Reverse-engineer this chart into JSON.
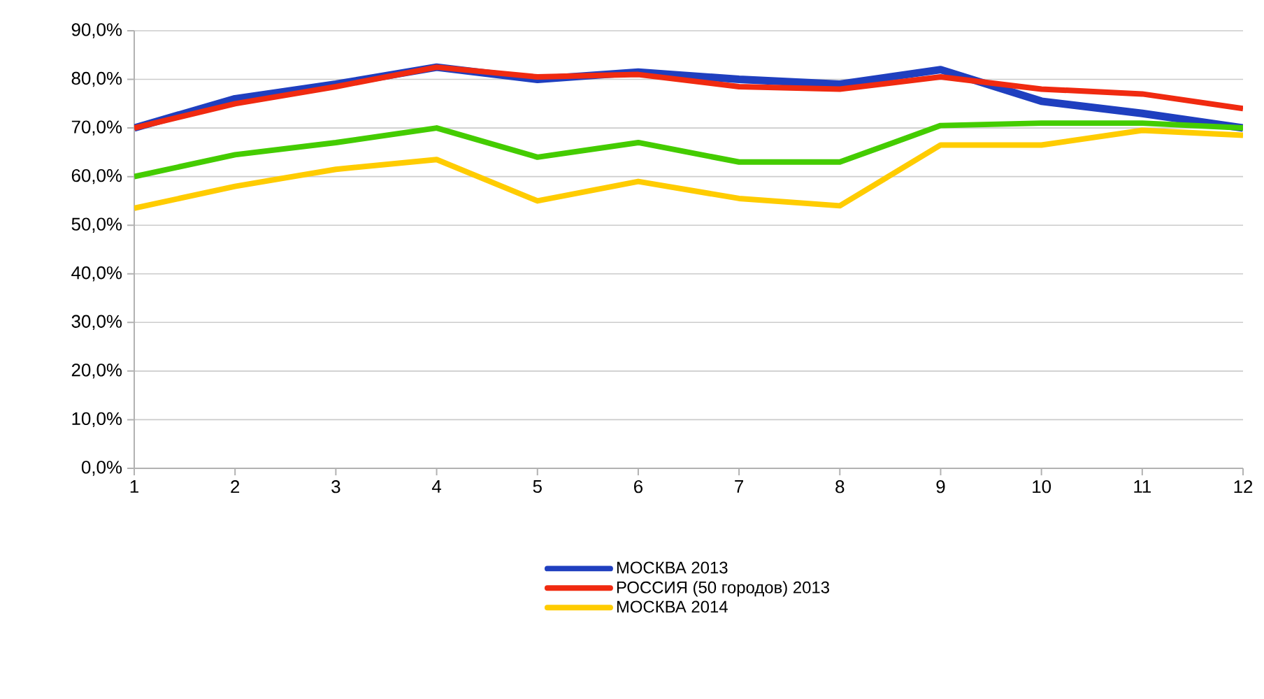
{
  "chart_data": {
    "type": "line",
    "categories": [
      "1",
      "2",
      "3",
      "4",
      "5",
      "6",
      "7",
      "8",
      "9",
      "10",
      "11",
      "12"
    ],
    "ylim": [
      0,
      90
    ],
    "yticks": [
      {
        "value": 0,
        "label": "0,0%"
      },
      {
        "value": 10,
        "label": "10,0%"
      },
      {
        "value": 20,
        "label": "20,0%"
      },
      {
        "value": 30,
        "label": "30,0%"
      },
      {
        "value": 40,
        "label": "40,0%"
      },
      {
        "value": 50,
        "label": "50,0%"
      },
      {
        "value": 60,
        "label": "60,0%"
      },
      {
        "value": 70,
        "label": "70,0%"
      },
      {
        "value": 80,
        "label": "80,0%"
      },
      {
        "value": 90,
        "label": "90,0%"
      }
    ],
    "grid": "y",
    "legend": "bottom",
    "marker": "none",
    "line_style": "solid",
    "series": [
      {
        "name": "МОСКВА 2013",
        "color": "#1f3fbf",
        "values": [
          70,
          76,
          79,
          82.5,
          80,
          81.5,
          80,
          79,
          82,
          75.5,
          73,
          70
        ]
      },
      {
        "name": "РОССИЯ (50 городов) 2013",
        "color": "#f02a10",
        "values": [
          70,
          75,
          78.5,
          82.5,
          80.5,
          81,
          78.5,
          78,
          80.5,
          78,
          77,
          74
        ]
      },
      {
        "name": "МОСКВА 2014",
        "color": "#ffcc00",
        "values": [
          53.5,
          58,
          61.5,
          63.5,
          55,
          59,
          55.5,
          54,
          66.5,
          66.5,
          69.5,
          68.5
        ]
      },
      {
        "color": "#44cc00",
        "values": [
          60,
          64.5,
          67,
          70,
          64,
          67,
          63,
          63,
          70.5,
          71,
          71,
          70
        ]
      }
    ]
  }
}
